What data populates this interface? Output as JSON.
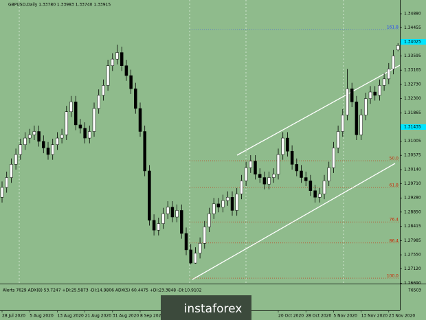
{
  "chart_data": {
    "type": "candlestick",
    "title": "GBPUSD,Daily 1.33780 1.33983 1.33740 1.33915",
    "indicator_label": "Alerts 7629 ADX(8) 53.7247 +DI:25.5873 -DI:14.9806 ADX(5) 60.4475 +DI:23.3848 -DI:10.9102",
    "indicator_value": "76503",
    "watermark": "instaforex",
    "up_color": "#ffffff",
    "down_color": "#000000",
    "background": "#8fbb8c",
    "categories": [
      "28 Jul 2020",
      null,
      null,
      null,
      null,
      null,
      "5 Aug 2020",
      null,
      null,
      null,
      null,
      null,
      "13 Aug 2020",
      null,
      null,
      null,
      null,
      null,
      "21 Aug 2020",
      null,
      null,
      null,
      null,
      null,
      "31 Aug 2020",
      null,
      null,
      null,
      null,
      null,
      "8 Sep 2020",
      null,
      null,
      null,
      null,
      null,
      null,
      null,
      null,
      null,
      null,
      null,
      null,
      null,
      null,
      null,
      null,
      null,
      null,
      null,
      null,
      null,
      null,
      null,
      null,
      null,
      null,
      null,
      null,
      null,
      "20 Oct 2020",
      null,
      null,
      null,
      null,
      null,
      "28 Oct 2020",
      null,
      null,
      null,
      null,
      null,
      "5 Nov 2020",
      null,
      null,
      null,
      null,
      null,
      "13 Nov 2020",
      null,
      null,
      null,
      null,
      null,
      "23 Nov 2020",
      null,
      null
    ],
    "open": [
      1.293,
      1.296,
      1.299,
      1.303,
      1.306,
      1.309,
      1.311,
      1.312,
      1.313,
      1.31,
      1.308,
      1.306,
      1.309,
      1.311,
      1.312,
      1.319,
      1.322,
      1.315,
      1.314,
      1.311,
      1.313,
      1.32,
      1.324,
      1.327,
      1.333,
      1.335,
      1.337,
      1.333,
      1.33,
      1.326,
      1.32,
      1.313,
      1.301,
      1.286,
      1.283,
      1.285,
      1.288,
      1.29,
      1.287,
      1.289,
      1.282,
      1.277,
      1.273,
      1.276,
      1.279,
      1.284,
      1.288,
      1.291,
      1.29,
      1.292,
      1.293,
      1.289,
      1.294,
      1.298,
      1.302,
      1.304,
      1.3,
      1.299,
      1.297,
      1.299,
      1.3,
      1.306,
      1.311,
      1.307,
      1.303,
      1.301,
      1.299,
      1.298,
      1.295,
      1.293,
      1.294,
      1.298,
      1.302,
      1.308,
      1.313,
      1.318,
      1.326,
      1.322,
      1.312,
      1.318,
      1.323,
      1.325,
      1.324,
      1.327,
      1.329,
      1.332,
      1.3378
    ],
    "high": [
      1.2978,
      1.3008,
      1.3048,
      1.3078,
      1.3108,
      1.3128,
      1.3138,
      1.3148,
      1.3148,
      1.3118,
      1.3098,
      1.3108,
      1.3128,
      1.3138,
      1.3208,
      1.3238,
      1.3238,
      1.3168,
      1.3158,
      1.3148,
      1.3218,
      1.3258,
      1.3288,
      1.3348,
      1.3368,
      1.3394,
      1.3388,
      1.3348,
      1.3318,
      1.3278,
      1.3218,
      1.3148,
      1.3028,
      1.2878,
      1.2868,
      1.2898,
      1.2918,
      1.2918,
      1.2908,
      1.2908,
      1.2838,
      1.2788,
      1.2778,
      1.2808,
      1.2858,
      1.2898,
      1.2928,
      1.2928,
      1.2938,
      1.2948,
      1.2948,
      1.2958,
      1.2998,
      1.3038,
      1.3058,
      1.3058,
      1.3018,
      1.3008,
      1.3008,
      1.3018,
      1.3078,
      1.3128,
      1.3128,
      1.3088,
      1.3048,
      1.3028,
      1.3008,
      1.2998,
      1.2968,
      1.2958,
      1.2998,
      1.3038,
      1.3098,
      1.3148,
      1.3198,
      1.332,
      1.3278,
      1.3238,
      1.3198,
      1.3248,
      1.3268,
      1.3268,
      1.3288,
      1.3308,
      1.3338,
      1.3378,
      1.33983
    ],
    "low": [
      1.2914,
      1.2944,
      1.2974,
      1.3014,
      1.3044,
      1.3074,
      1.3094,
      1.3104,
      1.3084,
      1.3064,
      1.3044,
      1.3044,
      1.3074,
      1.3094,
      1.3104,
      1.3174,
      1.3134,
      1.3124,
      1.3094,
      1.3094,
      1.3114,
      1.3184,
      1.3224,
      1.3254,
      1.3314,
      1.3334,
      1.3314,
      1.3284,
      1.3244,
      1.3184,
      1.3114,
      1.2994,
      1.2844,
      1.2814,
      1.2814,
      1.2834,
      1.2864,
      1.2854,
      1.2854,
      1.2804,
      1.2754,
      1.2726,
      1.2728,
      1.2744,
      1.2774,
      1.2824,
      1.2864,
      1.2884,
      1.2884,
      1.2904,
      1.2874,
      1.2874,
      1.2924,
      1.2964,
      1.3004,
      1.2984,
      1.2974,
      1.2954,
      1.2954,
      1.2974,
      1.2984,
      1.3044,
      1.3054,
      1.3014,
      1.2994,
      1.2974,
      1.2964,
      1.2934,
      1.2914,
      1.2914,
      1.2924,
      1.2964,
      1.3004,
      1.3064,
      1.3114,
      1.3164,
      1.3204,
      1.3104,
      1.3104,
      1.3164,
      1.3214,
      1.3224,
      1.3224,
      1.3254,
      1.3274,
      1.3304,
      1.3374
    ],
    "close": [
      1.296,
      1.299,
      1.303,
      1.306,
      1.309,
      1.311,
      1.312,
      1.313,
      1.31,
      1.308,
      1.306,
      1.309,
      1.311,
      1.312,
      1.319,
      1.322,
      1.315,
      1.314,
      1.311,
      1.313,
      1.32,
      1.324,
      1.327,
      1.333,
      1.335,
      1.337,
      1.333,
      1.33,
      1.326,
      1.32,
      1.313,
      1.301,
      1.286,
      1.283,
      1.285,
      1.288,
      1.29,
      1.287,
      1.289,
      1.282,
      1.277,
      1.273,
      1.276,
      1.279,
      1.284,
      1.288,
      1.291,
      1.29,
      1.292,
      1.293,
      1.289,
      1.294,
      1.298,
      1.302,
      1.304,
      1.3,
      1.299,
      1.297,
      1.299,
      1.3,
      1.306,
      1.311,
      1.307,
      1.303,
      1.301,
      1.299,
      1.298,
      1.295,
      1.293,
      1.294,
      1.298,
      1.302,
      1.308,
      1.313,
      1.318,
      1.326,
      1.322,
      1.312,
      1.318,
      1.323,
      1.325,
      1.324,
      1.327,
      1.329,
      1.332,
      1.336,
      1.33915
    ],
    "ylim": [
      1.26675,
      1.35298
    ],
    "yticks": [
      {
        "value": 1.3488,
        "label": "1.34880"
      },
      {
        "value": 1.34455,
        "label": "1.34455"
      },
      {
        "value": 1.34025,
        "label": "1.34025",
        "color": "#00e5ff"
      },
      {
        "value": 1.33595,
        "label": "1.33595"
      },
      {
        "value": 1.33165,
        "label": "1.33165"
      },
      {
        "value": 1.3273,
        "label": "1.32730"
      },
      {
        "value": 1.323,
        "label": "1.32300"
      },
      {
        "value": 1.31865,
        "label": "1.31865"
      },
      {
        "value": 1.31435,
        "label": "1.31435",
        "color": "#00e5ff"
      },
      {
        "value": 1.31005,
        "label": "1.31005"
      },
      {
        "value": 1.30575,
        "label": "1.30575"
      },
      {
        "value": 1.3014,
        "label": "1.30140"
      },
      {
        "value": 1.2971,
        "label": "1.29710"
      },
      {
        "value": 1.2928,
        "label": "1.29280"
      },
      {
        "value": 1.2885,
        "label": "1.28850"
      },
      {
        "value": 1.28415,
        "label": "1.28415"
      },
      {
        "value": 1.27985,
        "label": "1.27985"
      },
      {
        "value": 1.2755,
        "label": "1.27550"
      },
      {
        "value": 1.2712,
        "label": "1.27120"
      },
      {
        "value": 1.2669,
        "label": "1.26690"
      }
    ],
    "fib_levels": [
      {
        "label": "161.8",
        "value": 1.344,
        "color": "#2244ff"
      },
      {
        "label": "50.0",
        "value": 1.3041,
        "color": "#cc2200"
      },
      {
        "label": "61.8",
        "value": 1.296,
        "color": "#cc2200"
      },
      {
        "label": "76.4",
        "value": 1.2855,
        "color": "#cc2200"
      },
      {
        "label": "86.4",
        "value": 1.2791,
        "color": "#cc2200"
      },
      {
        "label": "100.0",
        "value": 1.2684,
        "color": "#cc2200"
      }
    ]
  }
}
